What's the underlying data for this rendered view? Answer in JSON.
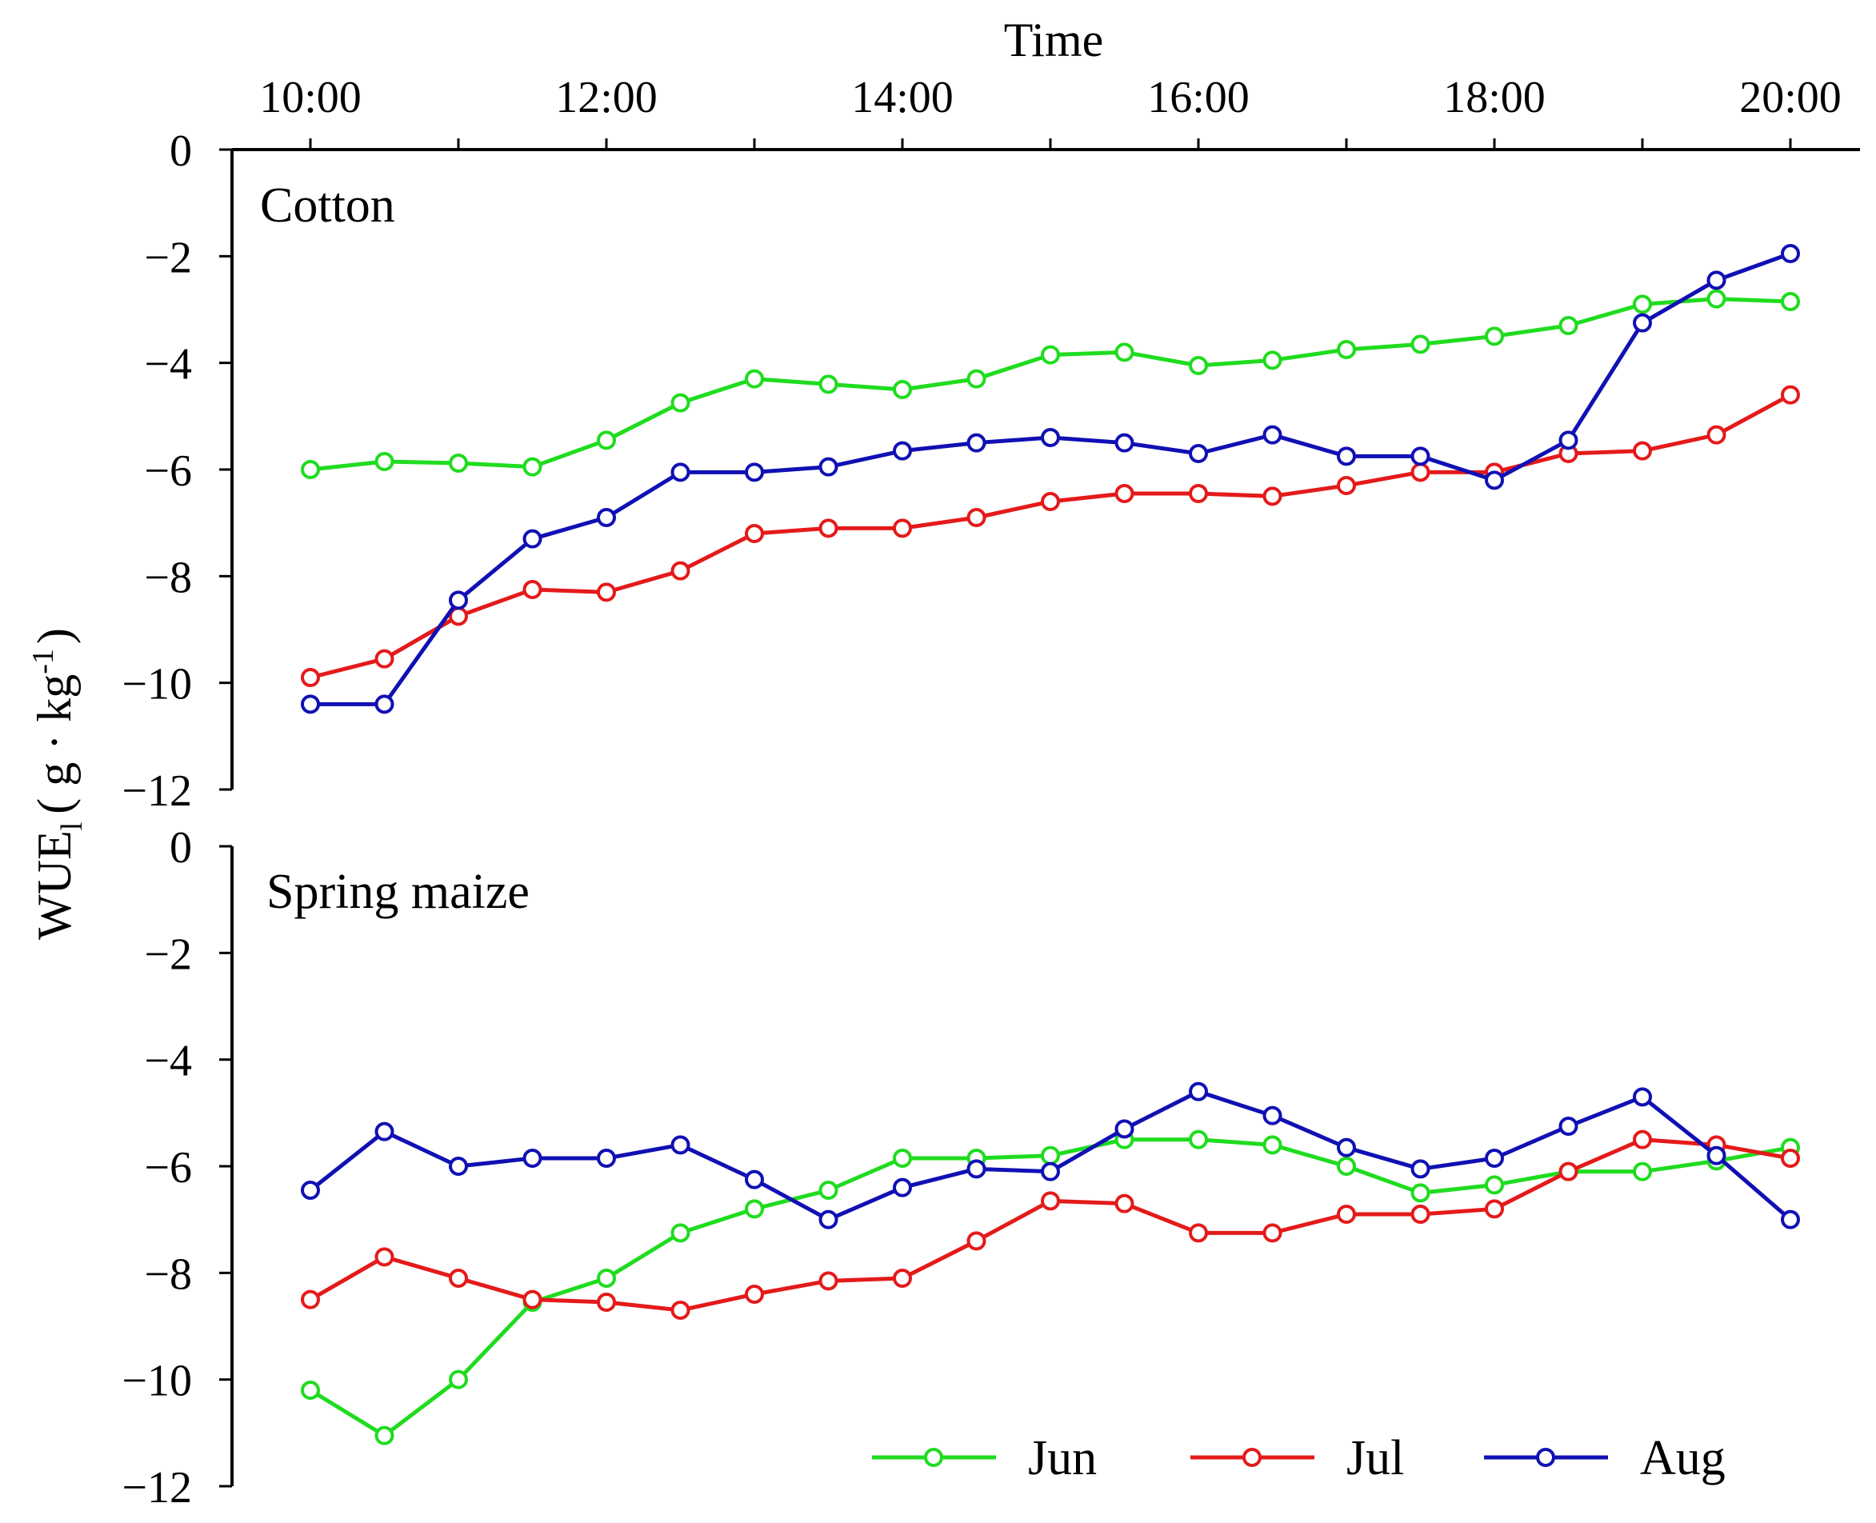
{
  "chart_data": {
    "type": "line",
    "xlabel": "Time",
    "ylabel": "WUE",
    "ylabel_subscript": "l",
    "ylabel_units_prefix": "( g · kg",
    "ylabel_units_exponent": "-1",
    "ylabel_units_suffix": ")",
    "x": [
      "10:00",
      "10:30",
      "11:00",
      "11:30",
      "12:00",
      "12:30",
      "13:00",
      "13:30",
      "14:00",
      "14:30",
      "15:00",
      "15:30",
      "16:00",
      "16:30",
      "17:00",
      "17:30",
      "18:00",
      "18:30",
      "19:00",
      "19:30",
      "20:00"
    ],
    "x_tick_labels": [
      "10:00",
      "12:00",
      "14:00",
      "16:00",
      "18:00",
      "20:00"
    ],
    "y_ticks": [
      0,
      -2,
      -4,
      -6,
      -8,
      -10,
      -12
    ],
    "y_tick_labels": [
      "0",
      "−2",
      "−4",
      "−6",
      "−8",
      "−10",
      "−12"
    ],
    "ylim": [
      -12,
      0
    ],
    "legend": {
      "placement": "bottom-right",
      "entries": [
        {
          "name": "Jun",
          "color": "#1fdc1f"
        },
        {
          "name": "Jul",
          "color": "#e41a1a"
        },
        {
          "name": "Aug",
          "color": "#1010b4"
        }
      ]
    },
    "panels": [
      {
        "label": "Cotton",
        "series": [
          {
            "name": "Jun",
            "color": "#1fdc1f",
            "values": [
              -6.0,
              -5.85,
              -5.88,
              -5.95,
              -5.45,
              -4.75,
              -4.3,
              -4.4,
              -4.5,
              -4.3,
              -3.85,
              -3.8,
              -4.05,
              -3.95,
              -3.75,
              -3.65,
              -3.5,
              -3.3,
              -2.9,
              -2.8,
              -2.85
            ]
          },
          {
            "name": "Jul",
            "color": "#e41a1a",
            "values": [
              -9.9,
              -9.55,
              -8.75,
              -8.25,
              -8.3,
              -7.9,
              -7.2,
              -7.1,
              -7.1,
              -6.9,
              -6.6,
              -6.45,
              -6.45,
              -6.5,
              -6.3,
              -6.05,
              -6.05,
              -5.7,
              -5.65,
              -5.35,
              -4.6
            ]
          },
          {
            "name": "Aug",
            "color": "#1010b4",
            "values": [
              -10.4,
              -10.4,
              -8.45,
              -7.3,
              -6.9,
              -6.05,
              -6.05,
              -5.95,
              -5.65,
              -5.5,
              -5.4,
              -5.5,
              -5.7,
              -5.35,
              -5.75,
              -5.75,
              -6.2,
              -5.45,
              -3.25,
              -2.45,
              -1.95
            ]
          }
        ]
      },
      {
        "label": "Spring maize",
        "series": [
          {
            "name": "Jun",
            "color": "#1fdc1f",
            "values": [
              -10.2,
              -11.05,
              -10.0,
              -8.55,
              -8.1,
              -7.25,
              -6.8,
              -6.45,
              -5.85,
              -5.85,
              -5.8,
              -5.5,
              -5.5,
              -5.6,
              -6.0,
              -6.5,
              -6.35,
              -6.1,
              -6.1,
              -5.9,
              -5.65
            ]
          },
          {
            "name": "Jul",
            "color": "#e41a1a",
            "values": [
              -8.5,
              -7.7,
              -8.1,
              -8.5,
              -8.55,
              -8.7,
              -8.4,
              -8.15,
              -8.1,
              -7.4,
              -6.65,
              -6.7,
              -7.25,
              -7.25,
              -6.9,
              -6.9,
              -6.8,
              -6.1,
              -5.5,
              -5.6,
              -5.85
            ]
          },
          {
            "name": "Aug",
            "color": "#1010b4",
            "values": [
              -6.45,
              -5.35,
              -6.0,
              -5.85,
              -5.85,
              -5.6,
              -6.25,
              -7.0,
              -6.4,
              -6.05,
              -6.1,
              -5.3,
              -4.6,
              -5.05,
              -5.65,
              -6.05,
              -5.85,
              -5.25,
              -4.7,
              -5.8,
              -7.0
            ]
          }
        ]
      }
    ]
  }
}
